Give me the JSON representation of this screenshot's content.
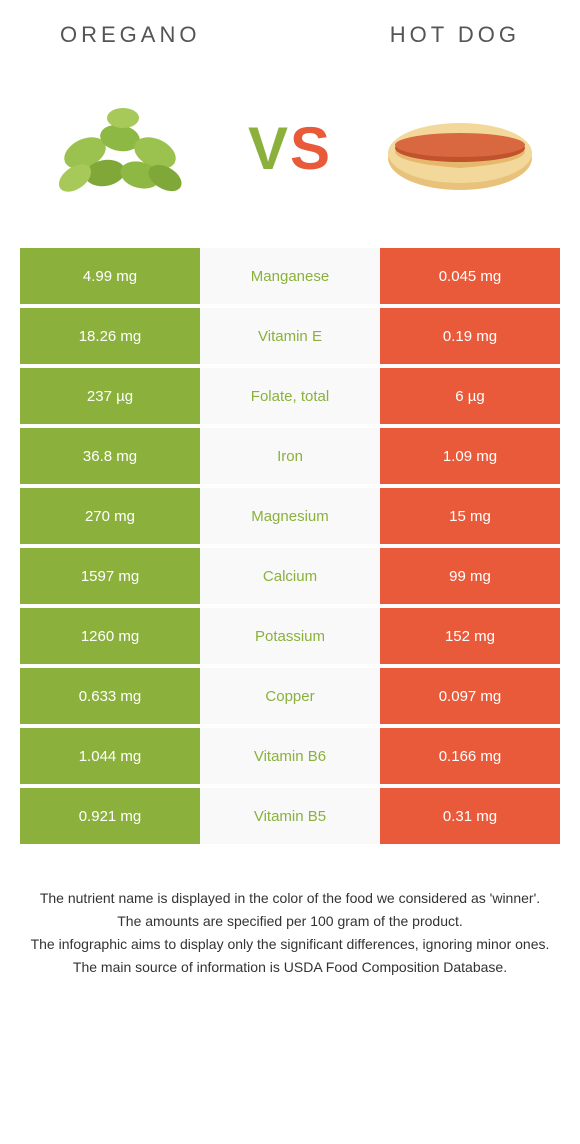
{
  "header": {
    "left_title": "OREGANO",
    "right_title": "HOT DOG"
  },
  "vs": {
    "v": "V",
    "s": "S"
  },
  "colors": {
    "oregano": "#8bb13c",
    "hotdog": "#e85a3a",
    "mid_bg": "#f9f9f9",
    "oregano_text": "#8bb13c",
    "hotdog_text": "#e85a3a"
  },
  "rows": [
    {
      "left": "4.99 mg",
      "label": "Manganese",
      "right": "0.045 mg",
      "winner": "oregano"
    },
    {
      "left": "18.26 mg",
      "label": "Vitamin E",
      "right": "0.19 mg",
      "winner": "oregano"
    },
    {
      "left": "237 µg",
      "label": "Folate, total",
      "right": "6 µg",
      "winner": "oregano"
    },
    {
      "left": "36.8 mg",
      "label": "Iron",
      "right": "1.09 mg",
      "winner": "oregano"
    },
    {
      "left": "270 mg",
      "label": "Magnesium",
      "right": "15 mg",
      "winner": "oregano"
    },
    {
      "left": "1597 mg",
      "label": "Calcium",
      "right": "99 mg",
      "winner": "oregano"
    },
    {
      "left": "1260 mg",
      "label": "Potassium",
      "right": "152 mg",
      "winner": "oregano"
    },
    {
      "left": "0.633 mg",
      "label": "Copper",
      "right": "0.097 mg",
      "winner": "oregano"
    },
    {
      "left": "1.044 mg",
      "label": "Vitamin B6",
      "right": "0.166 mg",
      "winner": "oregano"
    },
    {
      "left": "0.921 mg",
      "label": "Vitamin B5",
      "right": "0.31 mg",
      "winner": "oregano"
    }
  ],
  "footnotes": [
    "The nutrient name is displayed in the color of the food we considered as 'winner'.",
    "The amounts are specified per 100 gram of the product.",
    "The infographic aims to display only the significant differences, ignoring minor ones.",
    "The main source of information is USDA Food Composition Database."
  ]
}
